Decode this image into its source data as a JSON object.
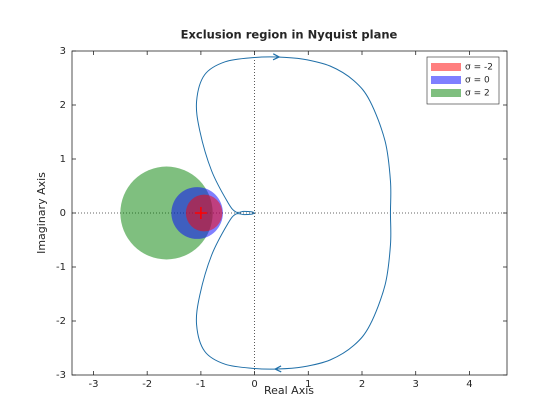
{
  "chart_data": {
    "type": "line",
    "title": "Exclusion region in Nyquist plane",
    "x_label": "Real Axis",
    "y_label": "Imaginary Axis",
    "xlim": [
      -3.4,
      4.7
    ],
    "ylim": [
      -3,
      3
    ],
    "xticks": [
      -3,
      -2,
      -1,
      0,
      1,
      2,
      3,
      4
    ],
    "yticks": [
      -3,
      -2,
      -1,
      0,
      1,
      2,
      3
    ],
    "legend_position": "upper right",
    "zero_lines": true,
    "series": [
      {
        "color": "#1f6fa8",
        "x": [
          0,
          -0.05,
          -0.2,
          -0.35,
          -0.5,
          -0.8,
          -1.02,
          -1.08,
          -0.93,
          -0.55,
          0,
          0.42,
          0.9,
          1.41,
          1.85,
          2.15,
          2.43,
          2.53,
          2.53,
          2.53,
          2.43,
          2.15,
          1.85,
          1.41,
          0.9,
          0.42,
          0,
          -0.55,
          -0.93,
          -1.08,
          -1.02,
          -0.8,
          -0.5,
          -0.35,
          -0.2,
          -0.05,
          0
        ],
        "values": [
          0,
          0.02,
          0.03,
          0.02,
          0.2,
          0.78,
          1.52,
          2.07,
          2.56,
          2.8,
          2.88,
          2.89,
          2.85,
          2.72,
          2.45,
          2.07,
          1.33,
          0.59,
          0,
          -0.59,
          -1.33,
          -2.07,
          -2.45,
          -2.72,
          -2.85,
          -2.89,
          -2.88,
          -2.8,
          -2.56,
          -2.07,
          -1.52,
          -0.78,
          -0.2,
          -0.02,
          -0.03,
          -0.02,
          0
        ]
      }
    ],
    "regions": [
      {
        "name": "σ = -2",
        "color": "#ff0000",
        "cx": -0.94,
        "cy": 0,
        "r": 0.34
      },
      {
        "name": "σ = 0",
        "color": "#0000ff",
        "cx": -1.07,
        "cy": 0,
        "r": 0.48
      },
      {
        "name": "σ = 2",
        "color": "#008000",
        "cx": -1.64,
        "cy": 0,
        "r": 0.86
      }
    ],
    "marker": {
      "x": -1,
      "y": 0,
      "color": "#ff0000"
    }
  }
}
